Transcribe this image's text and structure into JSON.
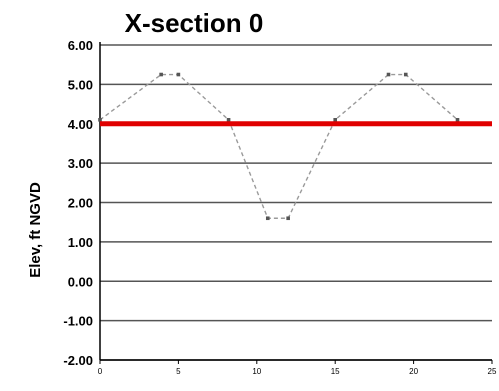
{
  "chart_data": {
    "type": "line",
    "title": "X-section 0",
    "xlabel": "",
    "ylabel": "Elev, ft NGVD",
    "xlim": [
      0,
      25
    ],
    "ylim": [
      -2,
      6
    ],
    "x_ticks": [
      "0",
      "5",
      "10",
      "15",
      "20",
      "25"
    ],
    "y_ticks": [
      "6.00",
      "5.00",
      "4.00",
      "3.00",
      "2.00",
      "1.00",
      "0.00",
      "-1.00",
      "-2.00"
    ],
    "grid": "horizontal",
    "series": [
      {
        "style": "dashed-gray-with-markers",
        "color": "#9a9a9a",
        "x": [
          0,
          3.9,
          5,
          8.2,
          10.7,
          12,
          15,
          18.4,
          19.5,
          22.8
        ],
        "y": [
          4.1,
          5.25,
          5.25,
          4.1,
          1.6,
          1.6,
          4.1,
          5.25,
          5.25,
          4.1
        ]
      },
      {
        "style": "solid-red",
        "color": "#e00000",
        "x": [
          0,
          25
        ],
        "y": [
          4,
          4
        ]
      }
    ]
  }
}
